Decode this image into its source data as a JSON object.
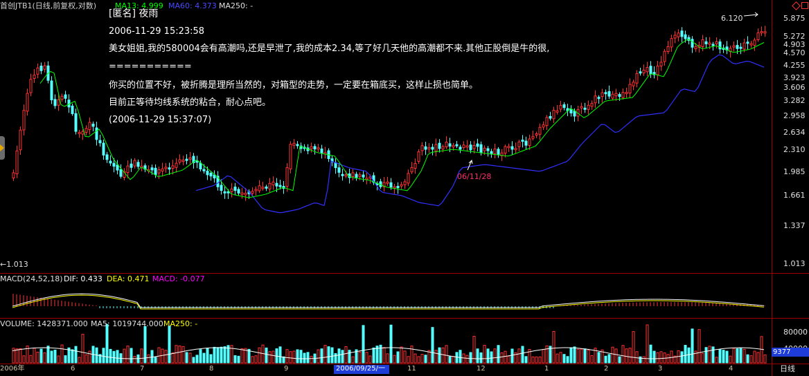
{
  "main_header": {
    "stock": "首创JTB1(日线,前复权,对数)",
    "ma13": "MA13: 4.999",
    "ma60": "MA60: 4.373",
    "ma250": "MA250: -"
  },
  "macd_header": {
    "title": "MACD(24,52,18)",
    "dif": "DIF: 0.433",
    "dea": "DEA: 0.471",
    "macd": "MACD: -0.077"
  },
  "vol_header": {
    "title": "VOLUME: 1428371.000",
    "ma5": "MA5: 1019744.000",
    "ma250": "MA250: -"
  },
  "note": {
    "author": "[匿名] 夜雨",
    "time": "2006-11-29 15:23:58",
    "question": "美女姐姐,我的580004会有高潮吗,还是早泄了,我的成本2.34,等了好几天他的高潮都不来.其他正股倒是牛的很,",
    "separator": " ===========",
    "answer1": "你买的位置不好，被折腾是理所当然的，对箱型的走势，一定要在箱底买，这样止损也简单。",
    "answer2": "目前正等待均线系统的粘合，耐心点吧。",
    "reply_time": "(2006-11-29 15:37:07)"
  },
  "annotations": {
    "high": "6.120",
    "low": "←1.013",
    "marker_date": "06/11/28"
  },
  "price_ticks": [
    "5.875",
    "5.272",
    "4.903",
    "4.570",
    "4.255",
    "3.923",
    "3.606",
    "3.282",
    "2.958",
    "2.634",
    "2.310",
    "1.985",
    "1.661",
    "1.337",
    "1.013"
  ],
  "vol_ticks": [
    "80000",
    "40000"
  ],
  "vol_badge": "9377",
  "months": [
    "2006年",
    "6",
    "7",
    "8",
    "9",
    "2006/09/25/一",
    "11",
    "12",
    "1",
    "2",
    "3",
    "4"
  ],
  "period_label": "日线",
  "colors": {
    "bg": "#000000",
    "up": "#ff3232",
    "down": "#54ffff",
    "ma13": "#00ff00",
    "ma60": "#3030ff",
    "frame": "#a00000",
    "dif": "#ffffff",
    "dea": "#ffff00",
    "macd_label": "#ff00ff"
  }
}
